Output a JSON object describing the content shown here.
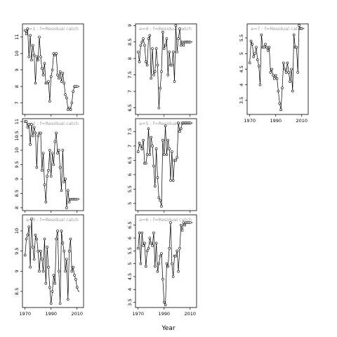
{
  "figure": {
    "xlabel": "Year"
  },
  "chart_data": [
    {
      "type": "line",
      "title": "a=1 :  f=Residual catch",
      "xlim": [
        1968,
        2015
      ],
      "ylim": [
        6.3,
        11.8
      ],
      "yticks": [
        7,
        8,
        9,
        10,
        11
      ],
      "xticks": [
        1970,
        1990,
        2010
      ],
      "show_xticks": false,
      "x": [
        1970,
        1971,
        1972,
        1973,
        1974,
        1975,
        1976,
        1977,
        1978,
        1979,
        1980,
        1981,
        1982,
        1983,
        1984,
        1985,
        1986,
        1987,
        1988,
        1989,
        1990,
        1991,
        1992,
        1993,
        1994,
        1995,
        1996,
        1997,
        1998,
        1999,
        2000,
        2001,
        2002,
        2003,
        2004,
        2005,
        2006,
        2007,
        2008,
        2009,
        2010,
        2011,
        2012
      ],
      "y": [
        11.4,
        11.2,
        11.5,
        9.8,
        11.1,
        9.6,
        10.5,
        9.9,
        8.2,
        9.8,
        9.6,
        11.0,
        9.8,
        9.1,
        8.7,
        9.4,
        8.2,
        8.2,
        8.3,
        7.1,
        8.6,
        9.0,
        10.0,
        9.9,
        10.0,
        8.7,
        8.5,
        8.9,
        8.3,
        8.8,
        8.2,
        7.5,
        7.3,
        6.6,
        6.7,
        6.6,
        7.0,
        7.7,
        8.0,
        8.0,
        8.0,
        8.0,
        8.0
      ]
    },
    {
      "type": "line",
      "title": "a=2 :  f=Residual catch",
      "xlim": [
        1968,
        2015
      ],
      "ylim": [
        7.9,
        11.1
      ],
      "yticks": [
        8.0,
        8.5,
        9.0,
        9.5,
        10.0,
        10.5,
        11.0
      ],
      "xticks": [
        1970,
        1990,
        2010
      ],
      "show_xticks": false,
      "x": [
        1970,
        1971,
        1972,
        1973,
        1974,
        1975,
        1976,
        1977,
        1978,
        1979,
        1980,
        1981,
        1982,
        1983,
        1984,
        1985,
        1986,
        1987,
        1988,
        1989,
        1990,
        1991,
        1992,
        1993,
        1994,
        1995,
        1996,
        1997,
        1998,
        1999,
        2000,
        2001,
        2002,
        2003,
        2004,
        2005,
        2006,
        2007,
        2008,
        2009,
        2010,
        2011,
        2012
      ],
      "y": [
        11.0,
        11.0,
        10.8,
        10.9,
        10.2,
        10.9,
        10.5,
        10.8,
        10.6,
        9.4,
        10.5,
        10.6,
        10.6,
        9.3,
        9.9,
        8.8,
        8.2,
        9.1,
        9.3,
        10.0,
        9.1,
        9.9,
        9.5,
        10.3,
        10.6,
        9.9,
        10.0,
        9.4,
        8.6,
        10.0,
        8.9,
        9.0,
        8.0,
        8.6,
        8.2,
        8.3,
        8.3,
        8.3,
        8.3,
        8.3,
        8.3,
        8.3,
        8.3
      ]
    },
    {
      "type": "line",
      "title": "a=3 :  f=Residual catch",
      "xlim": [
        1968,
        2015
      ],
      "ylim": [
        8.1,
        10.4
      ],
      "yticks": [
        8.5,
        9.0,
        9.5,
        10.0
      ],
      "xticks": [
        1970,
        1990,
        2010
      ],
      "show_xticks": true,
      "x": [
        1970,
        1971,
        1972,
        1973,
        1974,
        1975,
        1976,
        1977,
        1978,
        1979,
        1980,
        1981,
        1982,
        1983,
        1984,
        1985,
        1986,
        1987,
        1988,
        1989,
        1990,
        1991,
        1992,
        1993,
        1994,
        1995,
        1996,
        1997,
        1998,
        1999,
        2000,
        2001,
        2002,
        2003,
        2004,
        2005,
        2006,
        2007,
        2008,
        2009,
        2010,
        2011,
        2012
      ],
      "y": [
        9.4,
        9.8,
        9.9,
        10.1,
        9.1,
        10.3,
        9.6,
        9.3,
        9.9,
        9.8,
        9.5,
        9.0,
        9.5,
        9.3,
        9.0,
        9.8,
        8.7,
        9.6,
        9.1,
        8.6,
        8.2,
        8.5,
        8.9,
        8.7,
        9.8,
        10.0,
        9.0,
        8.2,
        10.0,
        9.7,
        9.5,
        9.0,
        9.3,
        8.3,
        9.5,
        9.8,
        9.0,
        9.1,
        8.9,
        8.8,
        8.6,
        8.5,
        8.5
      ]
    },
    {
      "type": "line",
      "title": "a=4 :  f=Residual catch",
      "xlim": [
        1968,
        2015
      ],
      "ylim": [
        6.3,
        9.05
      ],
      "yticks": [
        6.5,
        7.0,
        7.5,
        8.0,
        8.5,
        9.0
      ],
      "xticks": [
        1970,
        1990,
        2010
      ],
      "show_xticks": false,
      "x": [
        1970,
        1971,
        1972,
        1973,
        1974,
        1975,
        1976,
        1977,
        1978,
        1979,
        1980,
        1981,
        1982,
        1983,
        1984,
        1985,
        1986,
        1987,
        1988,
        1989,
        1990,
        1991,
        1992,
        1993,
        1994,
        1995,
        1996,
        1997,
        1998,
        1999,
        2000,
        2001,
        2002,
        2003,
        2004,
        2005,
        2006,
        2007,
        2008,
        2009,
        2010,
        2011,
        2012
      ],
      "y": [
        8.2,
        7.9,
        8.4,
        8.5,
        8.6,
        8.4,
        7.9,
        7.8,
        8.6,
        8.7,
        7.4,
        8.3,
        7.5,
        7.6,
        8.3,
        7.8,
        6.5,
        7.1,
        7.6,
        8.8,
        8.3,
        8.4,
        8.6,
        7.5,
        8.2,
        7.8,
        7.8,
        8.2,
        7.3,
        9.0,
        8.2,
        8.6,
        8.9,
        8.4,
        8.5,
        8.4,
        8.5,
        8.5,
        8.5,
        8.5,
        8.5,
        8.5,
        8.5
      ]
    },
    {
      "type": "line",
      "title": "a=5 :  f=Residual catch",
      "xlim": [
        1968,
        2015
      ],
      "ylim": [
        4.75,
        7.95
      ],
      "yticks": [
        5.0,
        5.5,
        6.0,
        6.5,
        7.0,
        7.5
      ],
      "xticks": [
        1970,
        1990,
        2010
      ],
      "show_xticks": false,
      "x": [
        1970,
        1971,
        1972,
        1973,
        1974,
        1975,
        1976,
        1977,
        1978,
        1979,
        1980,
        1981,
        1982,
        1983,
        1984,
        1985,
        1986,
        1987,
        1988,
        1989,
        1990,
        1991,
        1992,
        1993,
        1994,
        1995,
        1996,
        1997,
        1998,
        1999,
        2000,
        2001,
        2002,
        2003,
        2004,
        2005,
        2006,
        2007,
        2008,
        2009,
        2010,
        2011,
        2012
      ],
      "y": [
        6.8,
        7.1,
        7.0,
        6.9,
        7.2,
        6.4,
        6.4,
        6.7,
        7.6,
        6.7,
        7.3,
        7.0,
        6.3,
        5.6,
        6.9,
        5.9,
        5.2,
        5.1,
        4.9,
        7.2,
        6.7,
        7.7,
        6.7,
        7.2,
        6.9,
        5.8,
        6.8,
        5.8,
        6.5,
        6.5,
        6.6,
        7.8,
        7.5,
        7.6,
        7.8,
        7.8,
        7.8,
        7.8,
        7.8,
        7.8,
        7.8,
        7.8,
        7.8
      ]
    },
    {
      "type": "line",
      "title": "a=6 :  f=Residual catch",
      "xlim": [
        1968,
        2015
      ],
      "ylim": [
        3.3,
        6.9
      ],
      "yticks": [
        3.5,
        4.0,
        4.5,
        5.0,
        5.5,
        6.0,
        6.5
      ],
      "xticks": [
        1970,
        1990,
        2010
      ],
      "show_xticks": true,
      "x": [
        1970,
        1971,
        1972,
        1973,
        1974,
        1975,
        1976,
        1977,
        1978,
        1979,
        1980,
        1981,
        1982,
        1983,
        1984,
        1985,
        1986,
        1987,
        1988,
        1989,
        1990,
        1991,
        1992,
        1993,
        1994,
        1995,
        1996,
        1997,
        1998,
        1999,
        2000,
        2001,
        2002,
        2003,
        2004,
        2005,
        2006,
        2007,
        2008,
        2009,
        2010,
        2011,
        2012
      ],
      "y": [
        5.6,
        6.2,
        5.0,
        6.2,
        5.7,
        5.8,
        4.9,
        5.5,
        5.6,
        6.0,
        5.8,
        5.7,
        6.2,
        4.9,
        5.8,
        4.7,
        5.0,
        5.3,
        5.4,
        4.4,
        3.5,
        3.4,
        5.0,
        4.9,
        5.6,
        6.6,
        5.0,
        4.5,
        5.3,
        5.3,
        5.5,
        4.7,
        5.6,
        6.5,
        6.3,
        6.6,
        6.5,
        6.6,
        6.6,
        6.6,
        6.6,
        6.6,
        6.6
      ]
    },
    {
      "type": "line",
      "title": "a=7 :  f=Residual catch",
      "xlim": [
        1968,
        2015
      ],
      "ylim": [
        3.05,
        5.95
      ],
      "yticks": [
        3.5,
        4.0,
        4.5,
        5.0,
        5.5
      ],
      "xticks": [
        1970,
        1990,
        2010
      ],
      "show_xticks": true,
      "x": [
        1970,
        1971,
        1972,
        1973,
        1974,
        1975,
        1976,
        1977,
        1978,
        1979,
        1980,
        1981,
        1982,
        1983,
        1984,
        1985,
        1986,
        1987,
        1988,
        1989,
        1990,
        1991,
        1992,
        1993,
        1994,
        1995,
        1996,
        1997,
        1998,
        1999,
        2000,
        2001,
        2002,
        2003,
        2004,
        2005,
        2006,
        2007,
        2008,
        2009,
        2010,
        2011,
        2012
      ],
      "y": [
        4.7,
        5.4,
        5.3,
        4.9,
        5.0,
        5.2,
        4.8,
        4.6,
        4.0,
        5.6,
        5.2,
        5.2,
        5.3,
        5.2,
        5.1,
        5.2,
        4.4,
        4.5,
        4.3,
        4.2,
        4.3,
        4.2,
        3.8,
        3.4,
        3.2,
        3.9,
        4.7,
        4.5,
        4.4,
        4.7,
        4.4,
        4.1,
        4.5,
        3.8,
        5.6,
        5.2,
        5.2,
        4.4,
        5.9,
        5.8,
        5.8,
        5.8,
        5.8
      ]
    }
  ]
}
